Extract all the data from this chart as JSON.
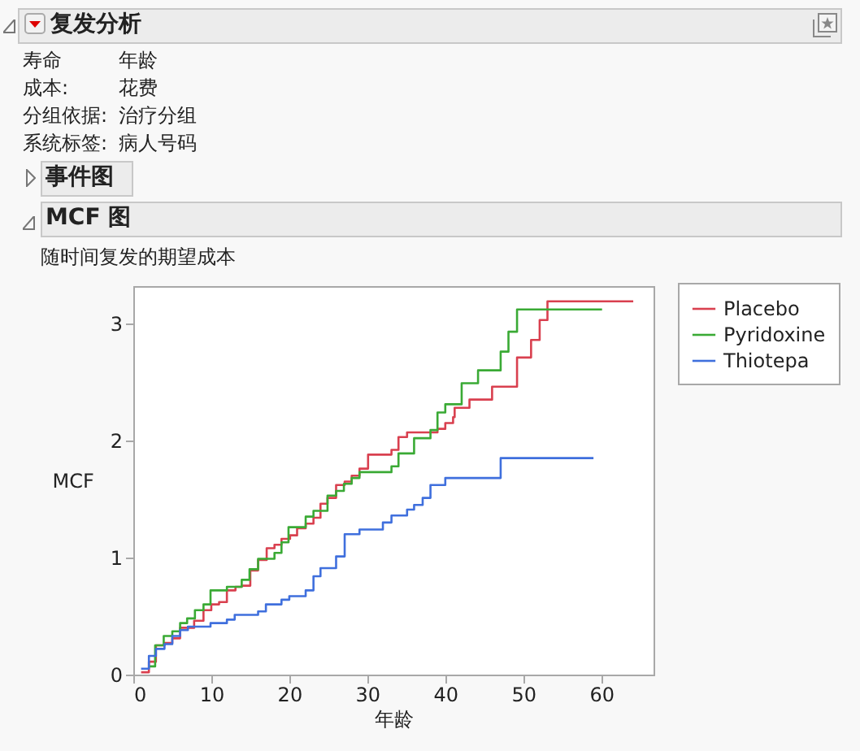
{
  "chart_data": {
    "type": "step",
    "title": "复发分析",
    "subtitle": "随时间复发的期望成本",
    "annotations": [
      "寿命",
      "年龄",
      "成本:",
      "花费",
      "分组依据:",
      "治疗分组",
      "系统标签:",
      "病人号码",
      "事件图",
      "MCF 图"
    ],
    "xlabel": "年龄",
    "ylabel": "MCF",
    "xlim": [
      0,
      66.7
    ],
    "xticks": [
      0,
      10,
      20,
      30,
      40,
      50,
      60
    ],
    "ylim": [
      0,
      3.32
    ],
    "yticks": [
      0,
      1,
      2,
      3
    ],
    "grid": false,
    "legend": "top right",
    "line_style": "solid",
    "marker": "none",
    "series": [
      {
        "name": "Placebo",
        "color": "#d9404f",
        "x": [
          1.0,
          2.0,
          2.9,
          4.0,
          5.0,
          6.0,
          7.8,
          9.0,
          10.0,
          11.0,
          12.0,
          13.1,
          13.9,
          15.0,
          16.0,
          17.1,
          18.1,
          19.0,
          20.1,
          21.0,
          22.1,
          23.1,
          24.0,
          24.9,
          26.0,
          27.1,
          28.0,
          29.0,
          30.1,
          33.1,
          34.0,
          35.1,
          39.0,
          40.0,
          41.0,
          41.2,
          43.1,
          46.0,
          49.2,
          51.0,
          52.1,
          53.1,
          64.1
        ],
        "values": [
          0.02,
          0.11,
          0.25,
          0.27,
          0.31,
          0.4,
          0.46,
          0.55,
          0.6,
          0.62,
          0.72,
          0.75,
          0.76,
          0.89,
          0.98,
          1.08,
          1.11,
          1.16,
          1.19,
          1.25,
          1.29,
          1.34,
          1.46,
          1.51,
          1.62,
          1.65,
          1.7,
          1.76,
          1.88,
          1.92,
          2.03,
          2.07,
          2.1,
          2.15,
          2.2,
          2.28,
          2.35,
          2.46,
          2.71,
          2.86,
          3.03,
          3.19,
          3.19
        ]
      },
      {
        "name": "Pyridoxine",
        "color": "#3aaa35",
        "x": [
          2.0,
          2.8,
          3.9,
          5.0,
          6.0,
          6.9,
          7.9,
          9.0,
          9.9,
          12.0,
          13.9,
          14.9,
          16.0,
          18.1,
          19.0,
          19.9,
          22.1,
          23.1,
          24.9,
          26.0,
          27.0,
          28.0,
          29.0,
          33.1,
          34.0,
          36.0,
          38.1,
          39.0,
          40.0,
          42.1,
          44.2,
          47.1,
          48.1,
          49.2,
          60.1
        ],
        "values": [
          0.07,
          0.25,
          0.33,
          0.37,
          0.44,
          0.48,
          0.55,
          0.6,
          0.72,
          0.75,
          0.81,
          0.9,
          0.99,
          1.04,
          1.13,
          1.26,
          1.35,
          1.4,
          1.53,
          1.57,
          1.63,
          1.68,
          1.73,
          1.78,
          1.89,
          2.02,
          2.09,
          2.24,
          2.31,
          2.49,
          2.6,
          2.76,
          2.93,
          3.12,
          3.12
        ]
      },
      {
        "name": "Thiotepa",
        "color": "#3f6fdd",
        "x": [
          1.0,
          2.0,
          2.9,
          4.0,
          5.0,
          6.0,
          7.0,
          9.9,
          12.0,
          13.0,
          16.0,
          17.0,
          19.0,
          20.0,
          22.1,
          23.1,
          24.0,
          26.0,
          27.1,
          29.0,
          32.0,
          33.1,
          35.1,
          36.0,
          37.1,
          38.1,
          40.0,
          47.1,
          59.0
        ],
        "values": [
          0.05,
          0.16,
          0.22,
          0.26,
          0.33,
          0.38,
          0.41,
          0.44,
          0.47,
          0.51,
          0.54,
          0.6,
          0.64,
          0.67,
          0.72,
          0.84,
          0.91,
          1.01,
          1.2,
          1.24,
          1.3,
          1.36,
          1.41,
          1.45,
          1.51,
          1.62,
          1.68,
          1.85,
          1.85
        ]
      }
    ]
  }
}
